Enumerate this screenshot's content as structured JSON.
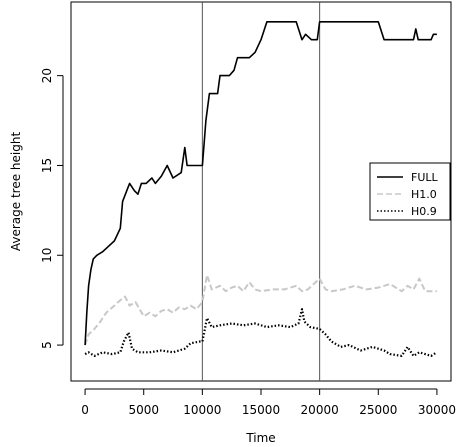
{
  "chart_data": {
    "type": "line",
    "title": "",
    "xlabel": "Time",
    "ylabel": "Average tree height",
    "xlim": [
      -1200,
      31200
    ],
    "ylim": [
      3.0,
      24.1
    ],
    "xticks": [
      0,
      5000,
      10000,
      15000,
      20000,
      25000,
      30000
    ],
    "yticks": [
      5,
      10,
      15,
      20
    ],
    "vlines": [
      10000,
      20000
    ],
    "grid": false,
    "legend_position": "right",
    "series": [
      {
        "name": "FULL",
        "color": "#000000",
        "dash": "solid",
        "points": [
          [
            0,
            5.0
          ],
          [
            150,
            6.8
          ],
          [
            300,
            8.3
          ],
          [
            500,
            9.2
          ],
          [
            700,
            9.8
          ],
          [
            1000,
            10.0
          ],
          [
            1500,
            10.2
          ],
          [
            2000,
            10.5
          ],
          [
            2500,
            10.8
          ],
          [
            3000,
            11.5
          ],
          [
            3200,
            13.0
          ],
          [
            3500,
            13.5
          ],
          [
            3800,
            14.0
          ],
          [
            4200,
            13.6
          ],
          [
            4500,
            13.4
          ],
          [
            4800,
            14.0
          ],
          [
            5200,
            14.0
          ],
          [
            5700,
            14.3
          ],
          [
            6000,
            14.0
          ],
          [
            6500,
            14.4
          ],
          [
            7000,
            15.0
          ],
          [
            7500,
            14.3
          ],
          [
            8200,
            14.6
          ],
          [
            8500,
            16.0
          ],
          [
            8700,
            15.0
          ],
          [
            9000,
            15.0
          ],
          [
            10000,
            15.0
          ],
          [
            10300,
            17.5
          ],
          [
            10600,
            19.0
          ],
          [
            11300,
            19.0
          ],
          [
            11500,
            20.0
          ],
          [
            12000,
            20.0
          ],
          [
            12300,
            20.0
          ],
          [
            12700,
            20.3
          ],
          [
            13000,
            21.0
          ],
          [
            14000,
            21.0
          ],
          [
            14500,
            21.3
          ],
          [
            15000,
            22.0
          ],
          [
            15500,
            23.0
          ],
          [
            18000,
            23.0
          ],
          [
            18500,
            22.0
          ],
          [
            18800,
            22.3
          ],
          [
            19300,
            22.0
          ],
          [
            19800,
            22.0
          ],
          [
            20000,
            23.0
          ],
          [
            25000,
            23.0
          ],
          [
            25500,
            22.0
          ],
          [
            28000,
            22.0
          ],
          [
            28200,
            22.6
          ],
          [
            28400,
            22.0
          ],
          [
            29500,
            22.0
          ],
          [
            29700,
            22.3
          ],
          [
            30000,
            22.3
          ]
        ]
      },
      {
        "name": "H1.0",
        "color": "#c8c8c8",
        "dash": "dashed",
        "points": [
          [
            0,
            5.0
          ],
          [
            300,
            5.6
          ],
          [
            800,
            5.9
          ],
          [
            1300,
            6.3
          ],
          [
            1800,
            6.8
          ],
          [
            2500,
            7.2
          ],
          [
            3000,
            7.5
          ],
          [
            3400,
            7.7
          ],
          [
            3800,
            7.2
          ],
          [
            4300,
            7.4
          ],
          [
            5000,
            6.6
          ],
          [
            5500,
            6.8
          ],
          [
            6000,
            6.6
          ],
          [
            6500,
            6.9
          ],
          [
            7000,
            7.0
          ],
          [
            7500,
            6.8
          ],
          [
            8000,
            7.1
          ],
          [
            8500,
            7.0
          ],
          [
            9000,
            7.2
          ],
          [
            9500,
            7.0
          ],
          [
            10000,
            7.4
          ],
          [
            10400,
            8.9
          ],
          [
            10800,
            8.1
          ],
          [
            11500,
            8.3
          ],
          [
            12000,
            8.0
          ],
          [
            12500,
            8.2
          ],
          [
            13000,
            8.3
          ],
          [
            13500,
            8.0
          ],
          [
            14000,
            8.5
          ],
          [
            14500,
            8.1
          ],
          [
            15000,
            8.0
          ],
          [
            16000,
            8.1
          ],
          [
            17000,
            8.1
          ],
          [
            18000,
            8.3
          ],
          [
            18500,
            8.0
          ],
          [
            19000,
            8.1
          ],
          [
            20000,
            8.7
          ],
          [
            20500,
            8.1
          ],
          [
            21000,
            8.0
          ],
          [
            22000,
            8.1
          ],
          [
            23000,
            8.3
          ],
          [
            24000,
            8.1
          ],
          [
            25000,
            8.2
          ],
          [
            26000,
            8.4
          ],
          [
            27000,
            8.0
          ],
          [
            27500,
            8.3
          ],
          [
            28000,
            8.1
          ],
          [
            28500,
            8.7
          ],
          [
            29000,
            8.0
          ],
          [
            30000,
            8.0
          ]
        ]
      },
      {
        "name": "H0.9",
        "color": "#000000",
        "dash": "dotted",
        "points": [
          [
            0,
            4.5
          ],
          [
            300,
            4.6
          ],
          [
            800,
            4.4
          ],
          [
            1500,
            4.6
          ],
          [
            2300,
            4.5
          ],
          [
            3000,
            4.6
          ],
          [
            3300,
            5.2
          ],
          [
            3700,
            5.7
          ],
          [
            4000,
            4.8
          ],
          [
            4500,
            4.6
          ],
          [
            5500,
            4.6
          ],
          [
            6500,
            4.7
          ],
          [
            7500,
            4.6
          ],
          [
            8500,
            4.8
          ],
          [
            9000,
            5.1
          ],
          [
            9800,
            5.2
          ],
          [
            10000,
            5.2
          ],
          [
            10400,
            6.5
          ],
          [
            10800,
            6.0
          ],
          [
            11500,
            6.1
          ],
          [
            12500,
            6.2
          ],
          [
            13500,
            6.1
          ],
          [
            14500,
            6.2
          ],
          [
            15500,
            6.0
          ],
          [
            16500,
            6.1
          ],
          [
            17500,
            6.0
          ],
          [
            18200,
            6.2
          ],
          [
            18500,
            7.0
          ],
          [
            18700,
            6.3
          ],
          [
            19200,
            6.0
          ],
          [
            20000,
            5.9
          ],
          [
            20500,
            5.6
          ],
          [
            21000,
            5.2
          ],
          [
            21800,
            4.9
          ],
          [
            22500,
            5.0
          ],
          [
            23500,
            4.7
          ],
          [
            24500,
            4.9
          ],
          [
            25500,
            4.7
          ],
          [
            26000,
            4.5
          ],
          [
            27000,
            4.4
          ],
          [
            27500,
            4.9
          ],
          [
            28000,
            4.4
          ],
          [
            28500,
            4.6
          ],
          [
            29000,
            4.5
          ],
          [
            29500,
            4.4
          ],
          [
            30000,
            4.6
          ]
        ]
      }
    ]
  }
}
